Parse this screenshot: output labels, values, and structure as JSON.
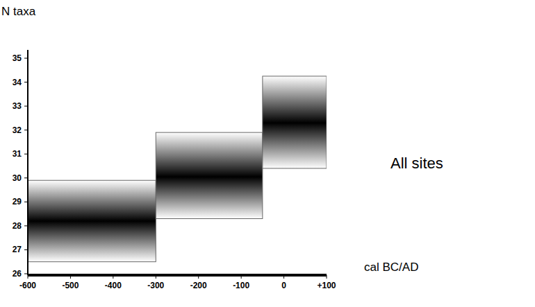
{
  "chart_data": {
    "type": "range",
    "y_label": "N taxa",
    "x_label": "cal BC/AD",
    "annotation": "All sites",
    "x_start": [
      -600,
      -300,
      -50
    ],
    "x_end": [
      -300,
      -50,
      100
    ],
    "values": [
      28.2,
      30.05,
      32.3
    ],
    "low": [
      26.5,
      28.3,
      30.4
    ],
    "high": [
      29.9,
      31.9,
      34.25
    ],
    "color": "#000000",
    "xlim": [
      -600,
      100
    ],
    "xticks": [
      -600,
      -500,
      -400,
      -300,
      -200,
      -100,
      0,
      {
        "value": 100,
        "label": "+100"
      }
    ],
    "ylim": [
      26,
      35
    ],
    "yticks": [
      26,
      27,
      28,
      29,
      30,
      31,
      32,
      33,
      34,
      35
    ],
    "grid": false
  }
}
